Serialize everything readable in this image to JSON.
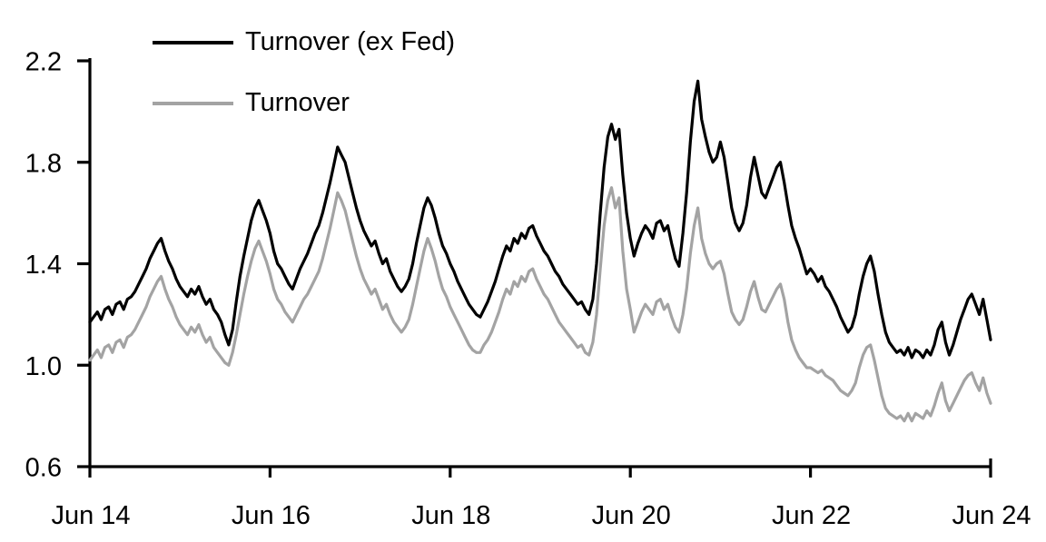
{
  "chart_data": {
    "type": "line",
    "title": "",
    "xlabel": "",
    "ylabel": "",
    "x_unit": "years since Jun 2014",
    "x_range": [
      0,
      10
    ],
    "x_step_years": 0.0416667,
    "ylim": [
      0.6,
      2.2
    ],
    "grid": false,
    "legend_position": "top-left",
    "background_color": "#ffffff",
    "axis_color": "#000000",
    "y_ticks": [
      0.6,
      1.0,
      1.4,
      1.8,
      2.2
    ],
    "y_tick_labels": [
      "0.6",
      "1.0",
      "1.4",
      "1.8",
      "2.2"
    ],
    "x_tick_years": [
      0,
      2,
      4,
      6,
      8,
      10
    ],
    "x_tick_labels": [
      "Jun 14",
      "Jun 16",
      "Jun 18",
      "Jun 20",
      "Jun 22",
      "Jun 24"
    ],
    "series": [
      {
        "name": "Turnover (ex Fed)",
        "color": "#000000",
        "values": [
          1.17,
          1.19,
          1.21,
          1.18,
          1.22,
          1.23,
          1.2,
          1.24,
          1.25,
          1.22,
          1.26,
          1.27,
          1.29,
          1.32,
          1.35,
          1.38,
          1.42,
          1.45,
          1.48,
          1.5,
          1.45,
          1.41,
          1.38,
          1.34,
          1.31,
          1.29,
          1.27,
          1.3,
          1.28,
          1.31,
          1.27,
          1.24,
          1.26,
          1.22,
          1.2,
          1.17,
          1.12,
          1.08,
          1.14,
          1.25,
          1.35,
          1.43,
          1.5,
          1.57,
          1.62,
          1.65,
          1.61,
          1.57,
          1.52,
          1.45,
          1.4,
          1.38,
          1.35,
          1.32,
          1.3,
          1.34,
          1.38,
          1.41,
          1.44,
          1.48,
          1.52,
          1.55,
          1.6,
          1.66,
          1.72,
          1.79,
          1.86,
          1.83,
          1.8,
          1.74,
          1.68,
          1.62,
          1.57,
          1.53,
          1.5,
          1.47,
          1.49,
          1.44,
          1.4,
          1.42,
          1.37,
          1.34,
          1.31,
          1.29,
          1.31,
          1.34,
          1.4,
          1.48,
          1.55,
          1.62,
          1.66,
          1.63,
          1.58,
          1.52,
          1.47,
          1.44,
          1.4,
          1.37,
          1.33,
          1.3,
          1.27,
          1.24,
          1.22,
          1.2,
          1.19,
          1.22,
          1.25,
          1.29,
          1.33,
          1.38,
          1.43,
          1.47,
          1.45,
          1.5,
          1.48,
          1.52,
          1.5,
          1.54,
          1.55,
          1.51,
          1.48,
          1.45,
          1.43,
          1.4,
          1.37,
          1.35,
          1.32,
          1.3,
          1.28,
          1.26,
          1.24,
          1.25,
          1.22,
          1.2,
          1.26,
          1.4,
          1.6,
          1.78,
          1.9,
          1.95,
          1.89,
          1.93,
          1.75,
          1.6,
          1.5,
          1.43,
          1.48,
          1.52,
          1.55,
          1.53,
          1.5,
          1.56,
          1.57,
          1.53,
          1.55,
          1.48,
          1.42,
          1.39,
          1.52,
          1.68,
          1.88,
          2.04,
          2.12,
          1.97,
          1.9,
          1.84,
          1.8,
          1.82,
          1.88,
          1.82,
          1.72,
          1.62,
          1.56,
          1.53,
          1.56,
          1.63,
          1.74,
          1.82,
          1.75,
          1.68,
          1.66,
          1.7,
          1.74,
          1.78,
          1.8,
          1.72,
          1.63,
          1.55,
          1.5,
          1.46,
          1.41,
          1.36,
          1.38,
          1.36,
          1.33,
          1.35,
          1.31,
          1.29,
          1.26,
          1.23,
          1.19,
          1.16,
          1.13,
          1.15,
          1.2,
          1.28,
          1.35,
          1.4,
          1.43,
          1.37,
          1.28,
          1.2,
          1.13,
          1.09,
          1.07,
          1.05,
          1.06,
          1.04,
          1.07,
          1.03,
          1.06,
          1.05,
          1.03,
          1.06,
          1.04,
          1.08,
          1.14,
          1.17,
          1.09,
          1.04,
          1.08,
          1.13,
          1.18,
          1.22,
          1.26,
          1.28,
          1.24,
          1.2,
          1.26,
          1.18,
          1.1
        ]
      },
      {
        "name": "Turnover",
        "color": "#a3a3a3",
        "values": [
          1.02,
          1.04,
          1.06,
          1.03,
          1.07,
          1.08,
          1.05,
          1.09,
          1.1,
          1.07,
          1.11,
          1.12,
          1.14,
          1.17,
          1.2,
          1.23,
          1.27,
          1.3,
          1.33,
          1.35,
          1.3,
          1.26,
          1.23,
          1.19,
          1.16,
          1.14,
          1.12,
          1.15,
          1.13,
          1.16,
          1.12,
          1.09,
          1.11,
          1.07,
          1.05,
          1.03,
          1.01,
          1.0,
          1.05,
          1.12,
          1.2,
          1.28,
          1.35,
          1.41,
          1.46,
          1.49,
          1.45,
          1.41,
          1.36,
          1.3,
          1.26,
          1.24,
          1.21,
          1.19,
          1.17,
          1.2,
          1.23,
          1.26,
          1.28,
          1.31,
          1.34,
          1.37,
          1.42,
          1.48,
          1.54,
          1.61,
          1.68,
          1.65,
          1.61,
          1.55,
          1.49,
          1.43,
          1.38,
          1.34,
          1.31,
          1.28,
          1.3,
          1.26,
          1.22,
          1.24,
          1.2,
          1.17,
          1.15,
          1.13,
          1.15,
          1.18,
          1.24,
          1.31,
          1.38,
          1.45,
          1.5,
          1.46,
          1.41,
          1.35,
          1.3,
          1.27,
          1.23,
          1.2,
          1.17,
          1.14,
          1.11,
          1.08,
          1.06,
          1.05,
          1.05,
          1.08,
          1.1,
          1.13,
          1.17,
          1.21,
          1.26,
          1.3,
          1.28,
          1.33,
          1.31,
          1.35,
          1.33,
          1.37,
          1.38,
          1.34,
          1.31,
          1.28,
          1.26,
          1.23,
          1.2,
          1.17,
          1.15,
          1.13,
          1.11,
          1.09,
          1.07,
          1.08,
          1.05,
          1.04,
          1.09,
          1.2,
          1.38,
          1.55,
          1.65,
          1.7,
          1.62,
          1.66,
          1.45,
          1.3,
          1.22,
          1.13,
          1.17,
          1.21,
          1.24,
          1.22,
          1.2,
          1.25,
          1.26,
          1.22,
          1.24,
          1.19,
          1.15,
          1.13,
          1.2,
          1.3,
          1.44,
          1.55,
          1.62,
          1.5,
          1.44,
          1.4,
          1.38,
          1.4,
          1.41,
          1.36,
          1.28,
          1.21,
          1.18,
          1.16,
          1.18,
          1.23,
          1.29,
          1.33,
          1.27,
          1.22,
          1.21,
          1.24,
          1.27,
          1.3,
          1.32,
          1.26,
          1.17,
          1.1,
          1.06,
          1.03,
          1.01,
          0.99,
          0.99,
          0.98,
          0.97,
          0.98,
          0.96,
          0.95,
          0.94,
          0.92,
          0.9,
          0.89,
          0.88,
          0.9,
          0.93,
          0.99,
          1.04,
          1.07,
          1.08,
          1.02,
          0.95,
          0.88,
          0.83,
          0.81,
          0.8,
          0.79,
          0.8,
          0.78,
          0.81,
          0.78,
          0.81,
          0.8,
          0.79,
          0.82,
          0.8,
          0.84,
          0.89,
          0.93,
          0.86,
          0.82,
          0.85,
          0.88,
          0.91,
          0.94,
          0.96,
          0.97,
          0.93,
          0.9,
          0.95,
          0.89,
          0.85
        ]
      }
    ]
  }
}
